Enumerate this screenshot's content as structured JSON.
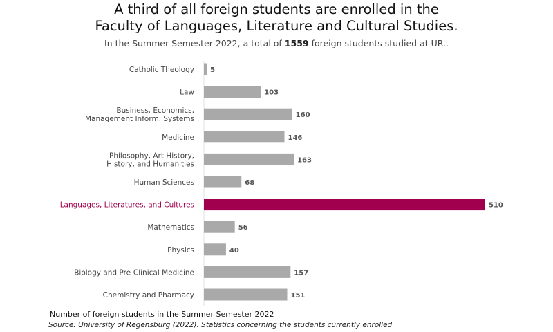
{
  "title": {
    "line1": "A third of all foreign students are enrolled in the",
    "line2": "Faculty of Languages, Literature and Cultural Studies."
  },
  "subtitle": {
    "prefix": "In the Summer Semester 2022, a total of ",
    "highlight": "1559",
    "suffix": " foreign students studied at UR.."
  },
  "footnote": "Number of foreign students in the Summer Semester 2022",
  "source": "Source: University of Regensburg (2022). Statistics concerning the students currently enrolled",
  "colors": {
    "bar_default": "#a9a9a9",
    "bar_highlight": "#a0004d",
    "label_default": "#444444",
    "label_highlight": "#a0004d"
  },
  "chart_data": {
    "type": "bar",
    "orientation": "horizontal",
    "categories": [
      [
        "Catholic Theology"
      ],
      [
        "Law"
      ],
      [
        "Business, Economics,",
        "Management Inform. Systems"
      ],
      [
        "Medicine"
      ],
      [
        "Philosophy, Art History,",
        "History, and Humanities"
      ],
      [
        "Human Sciences"
      ],
      [
        "Languages, Literatures, and Cultures"
      ],
      [
        "Mathematics"
      ],
      [
        "Physics"
      ],
      [
        "Biology and Pre-Clinical Medicine"
      ],
      [
        "Chemistry and Pharmacy"
      ]
    ],
    "values": [
      5,
      103,
      160,
      146,
      163,
      68,
      510,
      56,
      40,
      157,
      151
    ],
    "highlight_index": 6,
    "xlim": [
      0,
      510
    ],
    "data_labels": true,
    "grid": false
  }
}
